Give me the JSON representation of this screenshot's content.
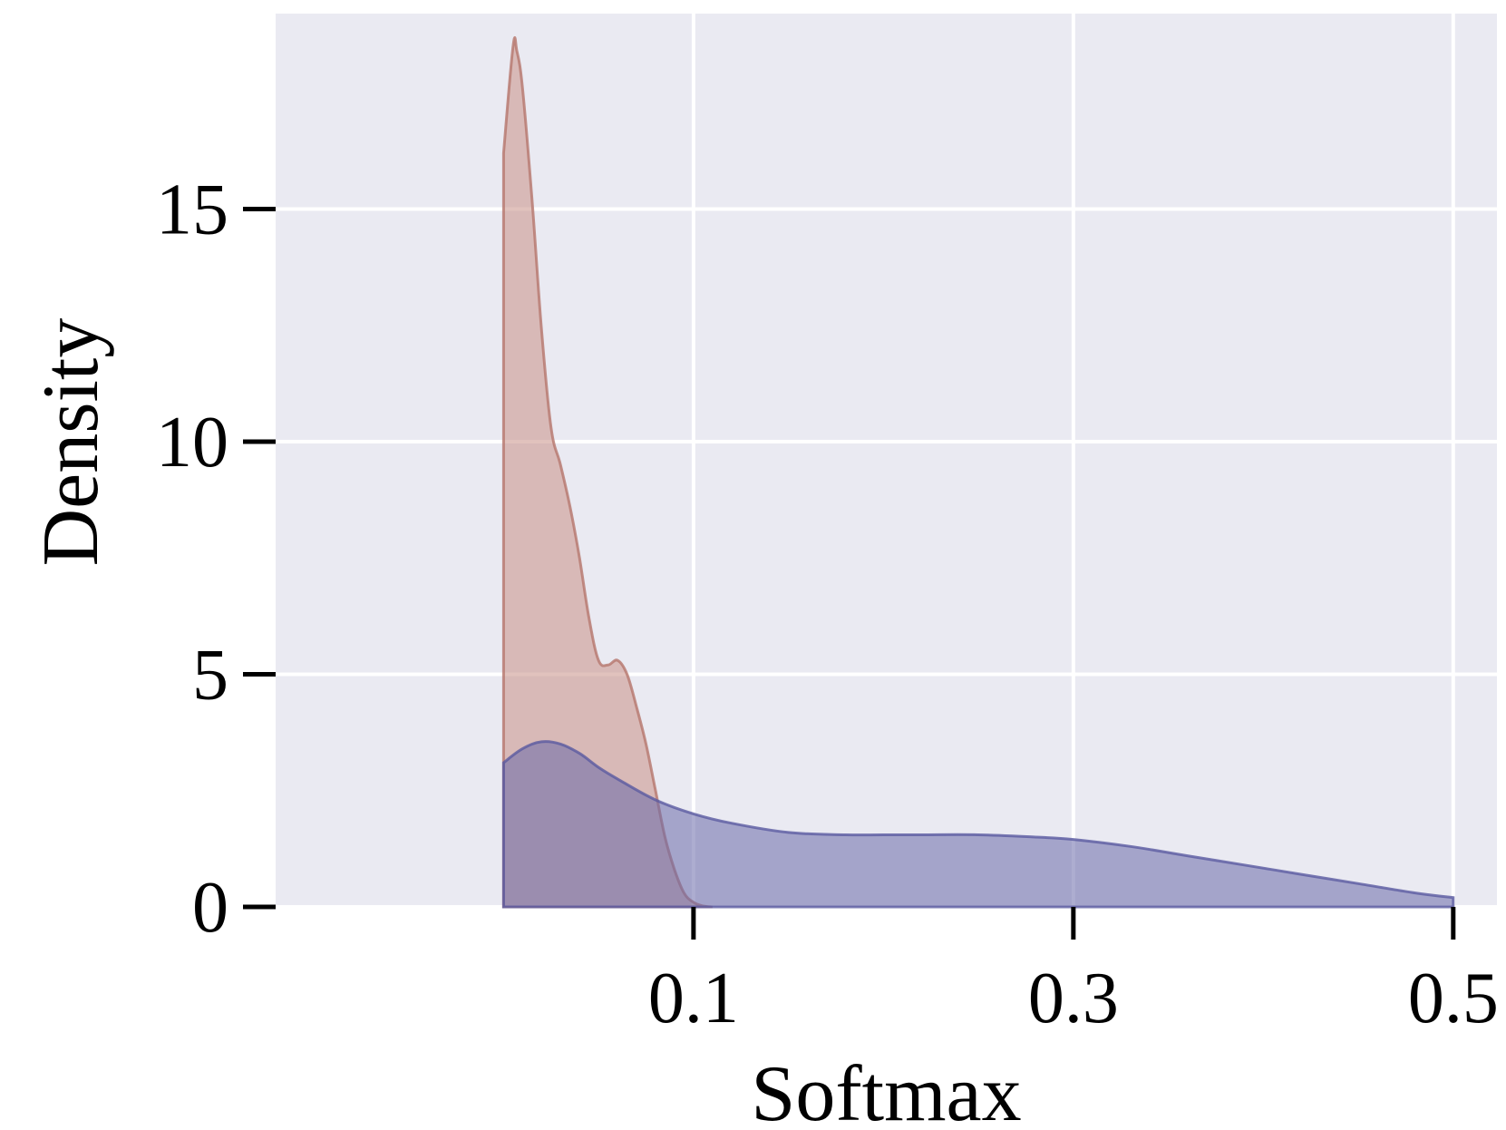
{
  "chart_data": {
    "type": "area",
    "title": "",
    "xlabel": "Softmax",
    "ylabel": "Density",
    "xlim": [
      -0.12,
      0.523
    ],
    "ylim": [
      0,
      19.2
    ],
    "xticks": [
      0.1,
      0.3,
      0.5
    ],
    "xtick_labels": [
      "0.1",
      "0.3",
      "0.5"
    ],
    "yticks": [
      0,
      5,
      10,
      15
    ],
    "ytick_labels": [
      "0",
      "5",
      "10",
      "15"
    ],
    "grid": true,
    "legend": "none",
    "colors": {
      "background": "#eaeaf2",
      "grid": "#ffffff",
      "series_1_fill": "#c98f86",
      "series_1_line": "#b5766c",
      "series_2_fill": "#6a6aaa",
      "series_2_line": "#5a5aa0"
    },
    "series": [
      {
        "x": [
          0.0,
          0.0,
          0.005,
          0.007,
          0.01,
          0.015,
          0.02,
          0.025,
          0.03,
          0.035,
          0.04,
          0.045,
          0.05,
          0.055,
          0.06,
          0.065,
          0.07,
          0.075,
          0.08,
          0.085,
          0.09,
          0.095,
          0.1,
          0.105,
          0.11
        ],
        "y": [
          0.0,
          16.2,
          18.5,
          18.4,
          17.6,
          15.2,
          12.4,
          10.3,
          9.5,
          8.6,
          7.5,
          6.2,
          5.3,
          5.2,
          5.3,
          5.0,
          4.3,
          3.5,
          2.5,
          1.5,
          0.8,
          0.3,
          0.1,
          0.02,
          0.0
        ]
      },
      {
        "x": [
          0.0,
          0.0,
          0.01,
          0.02,
          0.03,
          0.04,
          0.05,
          0.06,
          0.08,
          0.1,
          0.12,
          0.15,
          0.18,
          0.2,
          0.22,
          0.25,
          0.28,
          0.3,
          0.33,
          0.36,
          0.39,
          0.42,
          0.45,
          0.48,
          0.5,
          0.5
        ],
        "y": [
          0.0,
          3.1,
          3.4,
          3.55,
          3.5,
          3.3,
          3.0,
          2.75,
          2.3,
          2.0,
          1.8,
          1.6,
          1.55,
          1.55,
          1.55,
          1.55,
          1.5,
          1.45,
          1.3,
          1.1,
          0.9,
          0.7,
          0.5,
          0.3,
          0.2,
          0.0
        ]
      }
    ]
  }
}
